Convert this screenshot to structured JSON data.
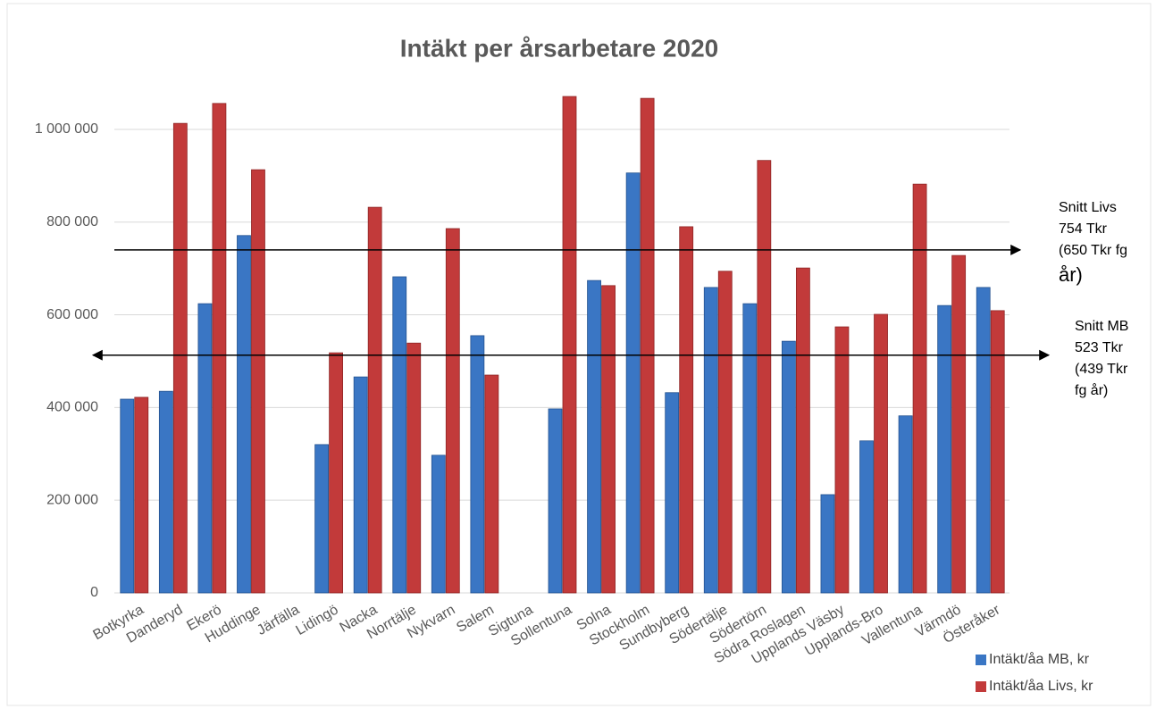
{
  "chart_data": {
    "type": "bar",
    "title": "Intäkt per årsarbetare 2020",
    "categories": [
      "Botkyrka",
      "Danderyd",
      "Ekerö",
      "Huddinge",
      "Järfälla",
      "Lidingö",
      "Nacka",
      "Norrtälje",
      "Nykvarn",
      "Salem",
      "Sigtuna",
      "Sollentuna",
      "Solna",
      "Stockholm",
      "Sundbyberg",
      "Södertälje",
      "Södertörn",
      "Södra Roslagen",
      "Upplands Väsby",
      "Upplands-Bro",
      "Vallentuna",
      "Värmdö",
      "Österåker"
    ],
    "series": [
      {
        "name": "Intäkt/åa MB, kr",
        "color": "#3a76c4",
        "values": [
          418000,
          435000,
          624000,
          771000,
          null,
          320000,
          466000,
          682000,
          297000,
          555000,
          null,
          397000,
          674000,
          906000,
          432000,
          659000,
          624000,
          543000,
          212000,
          328000,
          382000,
          620000,
          659000
        ]
      },
      {
        "name": "Intäkt/åa Livs, kr",
        "color": "#c23a3a",
        "values": [
          422000,
          1013000,
          1056000,
          913000,
          null,
          518000,
          832000,
          539000,
          786000,
          470000,
          null,
          1071000,
          663000,
          1067000,
          790000,
          694000,
          933000,
          701000,
          574000,
          601000,
          882000,
          728000,
          609000
        ]
      }
    ],
    "ylim": [
      0,
      1100000
    ],
    "yticks": [
      0,
      {
        "value": 200000,
        "label": "200 000"
      },
      {
        "value": 400000,
        "label": "400 000"
      },
      {
        "value": 600000,
        "label": "600 000"
      },
      {
        "value": 800000,
        "label": "800 000"
      },
      {
        "value": 1000000,
        "label": "1 000 000"
      }
    ],
    "grid": true,
    "legend": "bottom-right",
    "annotations": [
      {
        "value": 740000,
        "arrows": "right",
        "lines": [
          "Snitt Livs",
          "754 Tkr",
          "(650 Tkr fg",
          "år)"
        ]
      },
      {
        "value": 513000,
        "arrows": "both",
        "lines": [
          "Snitt MB",
          "523 Tkr",
          "(439 Tkr",
          "fg år)"
        ]
      }
    ]
  }
}
